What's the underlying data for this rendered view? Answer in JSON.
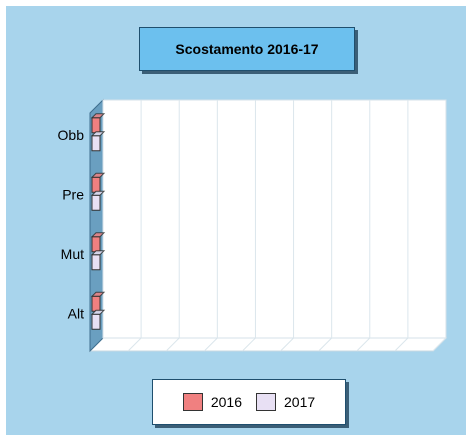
{
  "chart_data": {
    "type": "bar",
    "orientation": "horizontal",
    "title": "Scostamento 2016-17",
    "categories": [
      "Obb",
      "Pre",
      "Mut",
      "Alt"
    ],
    "series": [
      {
        "name": "2016",
        "color": "#f08080",
        "values": [
          0,
          0,
          0,
          0
        ]
      },
      {
        "name": "2017",
        "color": "#e8e0f4",
        "values": [
          0,
          0,
          0,
          0
        ]
      }
    ],
    "grid": true,
    "legend_position": "bottom",
    "xlabel": "",
    "ylabel": ""
  }
}
